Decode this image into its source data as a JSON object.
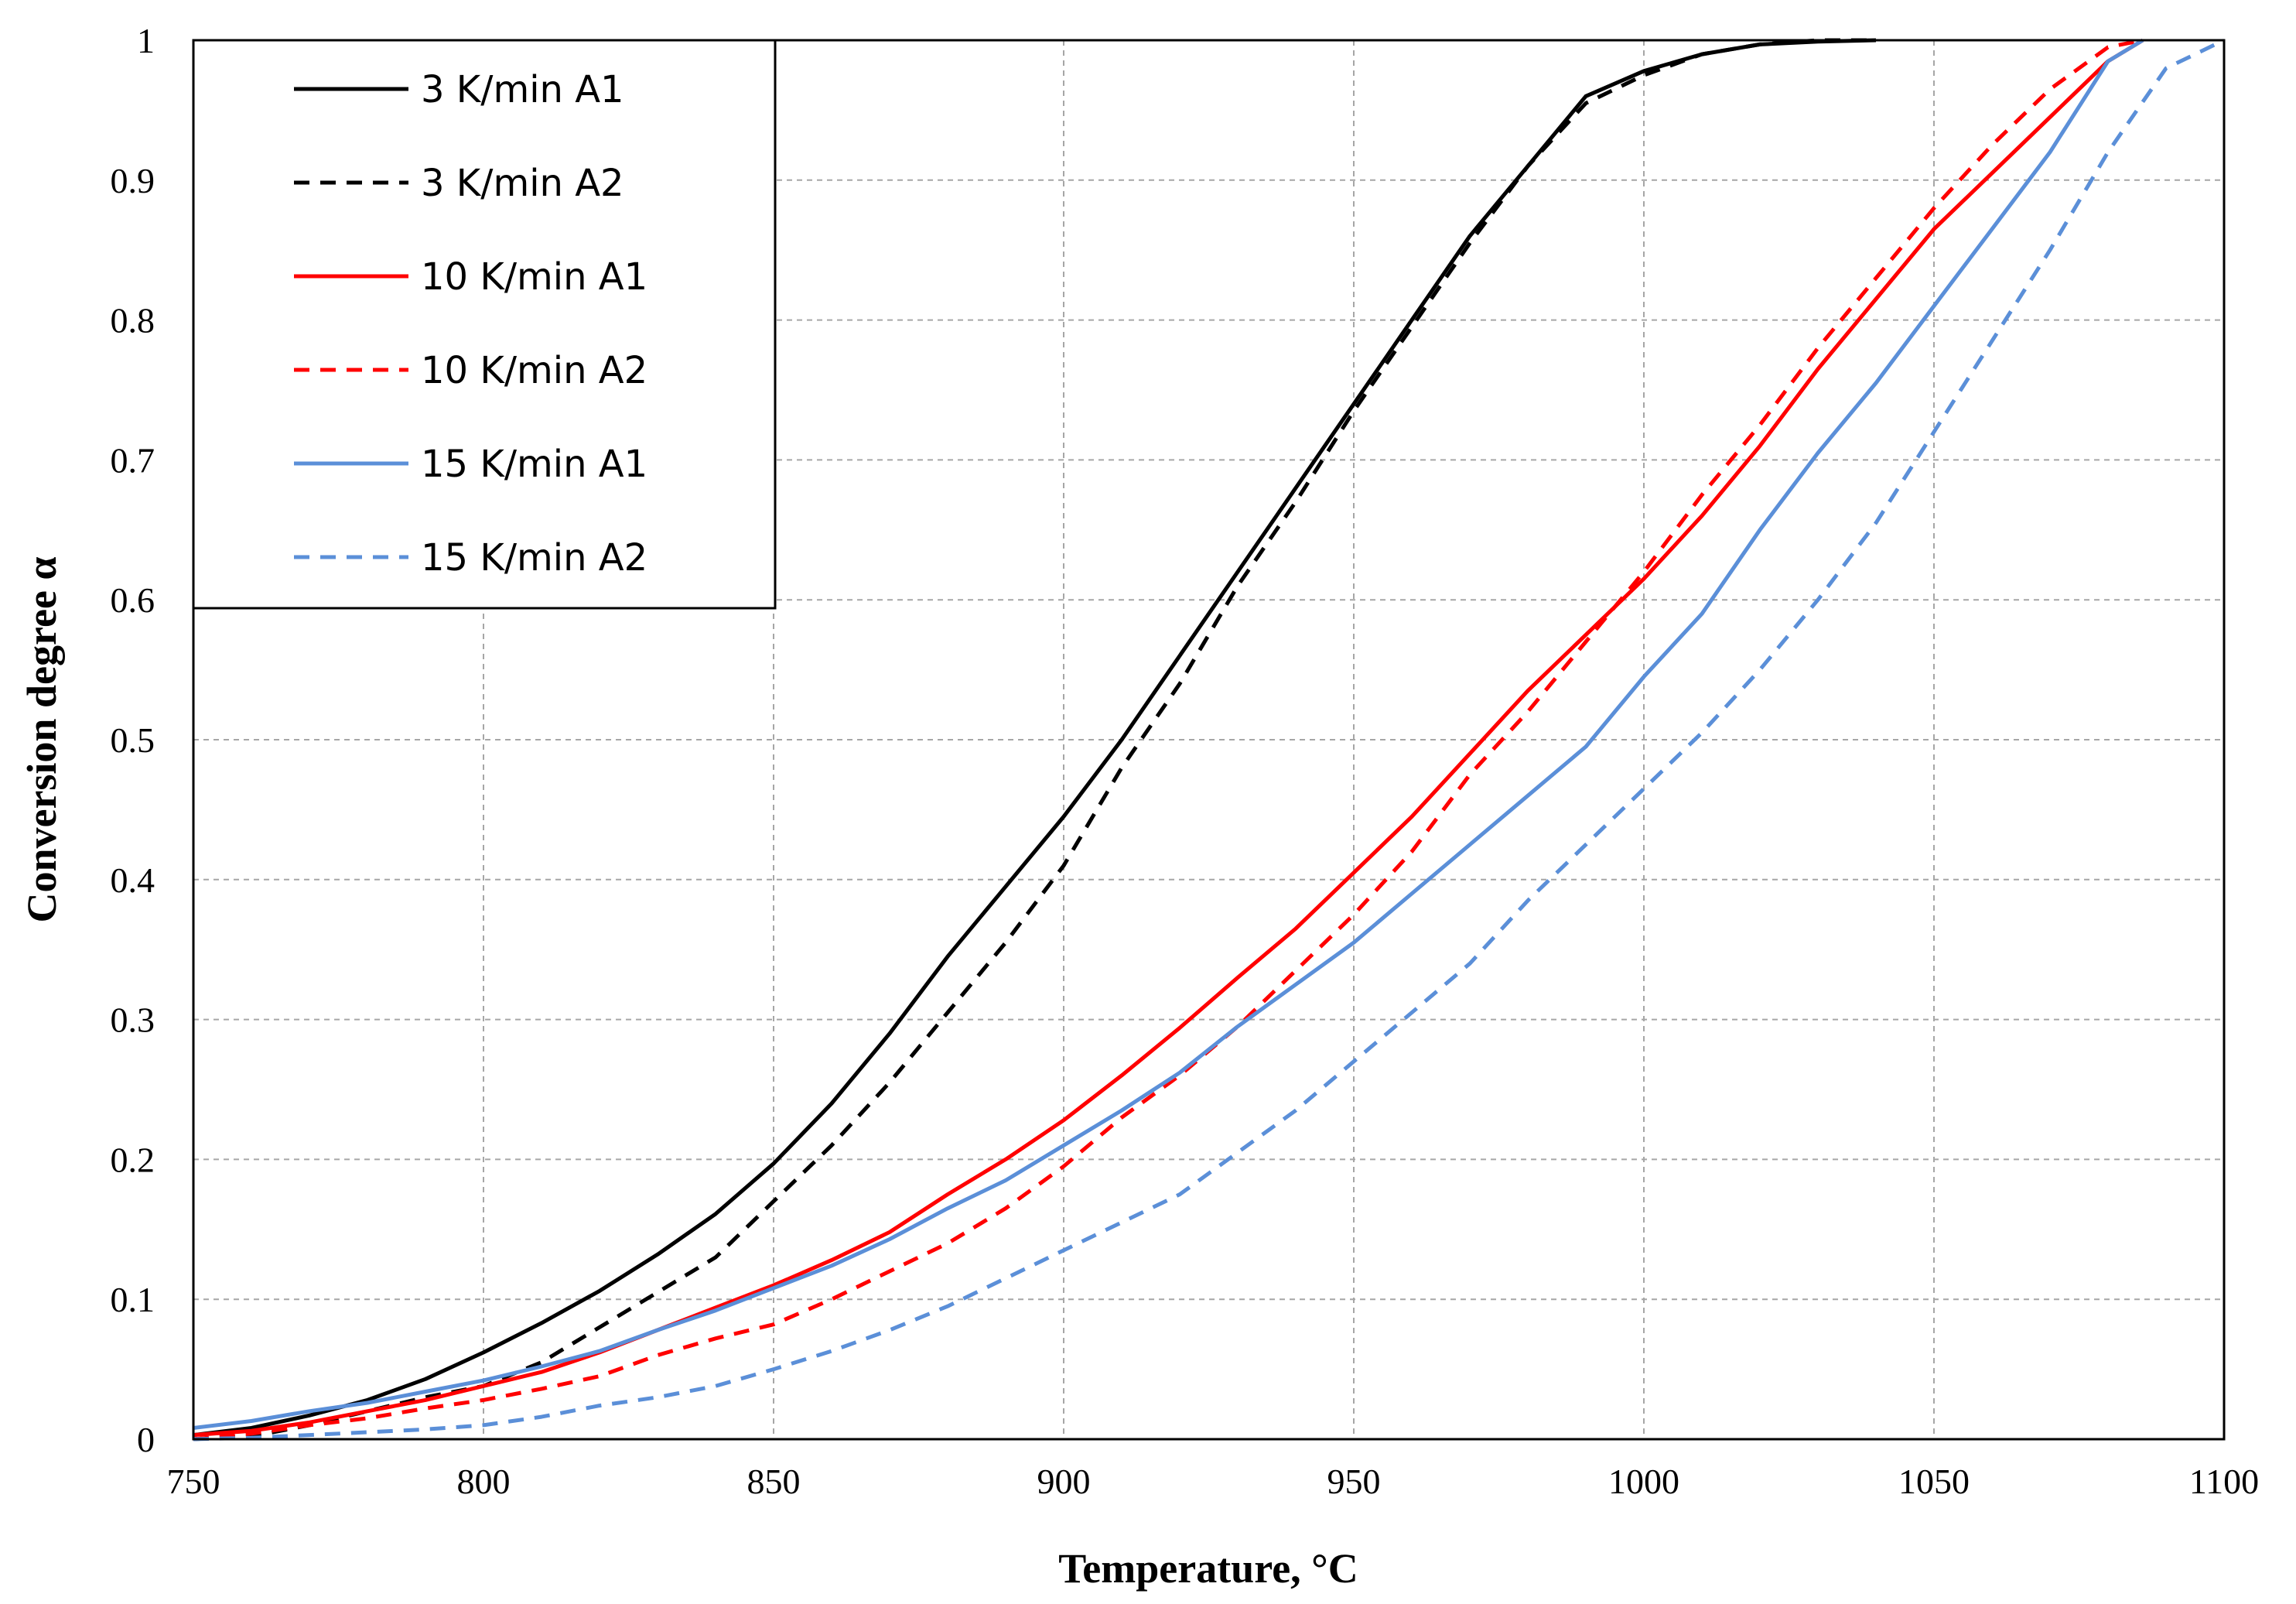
{
  "chart_data": {
    "type": "line",
    "title": "",
    "xlabel": "Temperature, °C",
    "ylabel": "Conversion degree α",
    "xlim": [
      750,
      1100
    ],
    "ylim": [
      0,
      1
    ],
    "xticks": [
      750,
      800,
      850,
      900,
      950,
      1000,
      1050,
      1100
    ],
    "yticks": [
      0,
      0.1,
      0.2,
      0.3,
      0.4,
      0.5,
      0.6,
      0.7,
      0.8,
      0.9,
      1
    ],
    "ytick_labels": [
      "0",
      "0.1",
      "0.2",
      "0.3",
      "0.4",
      "0.5",
      "0.6",
      "0.7",
      "0.8",
      "0.9",
      "1"
    ],
    "grid": true,
    "legend_position": "top-left",
    "series": [
      {
        "name": "3 K/min A1",
        "color": "#000000",
        "dash": "solid",
        "x": [
          750,
          760,
          770,
          780,
          790,
          800,
          810,
          820,
          830,
          840,
          850,
          860,
          870,
          880,
          890,
          900,
          910,
          920,
          930,
          940,
          950,
          960,
          970,
          980,
          990,
          1000,
          1010,
          1020,
          1030,
          1040
        ],
        "y": [
          0.003,
          0.008,
          0.017,
          0.028,
          0.043,
          0.062,
          0.083,
          0.106,
          0.132,
          0.161,
          0.197,
          0.24,
          0.29,
          0.345,
          0.395,
          0.445,
          0.5,
          0.56,
          0.62,
          0.68,
          0.74,
          0.8,
          0.86,
          0.91,
          0.96,
          0.978,
          0.99,
          0.997,
          0.999,
          1.0
        ]
      },
      {
        "name": "3 K/min A2",
        "color": "#000000",
        "dash": "dashed",
        "x": [
          750,
          760,
          770,
          780,
          790,
          800,
          810,
          820,
          830,
          840,
          850,
          860,
          870,
          880,
          890,
          900,
          910,
          920,
          930,
          940,
          950,
          960,
          970,
          980,
          990,
          1000,
          1010,
          1020,
          1030,
          1040
        ],
        "y": [
          0.0,
          0.002,
          0.01,
          0.02,
          0.03,
          0.038,
          0.055,
          0.08,
          0.105,
          0.13,
          0.17,
          0.21,
          0.255,
          0.305,
          0.355,
          0.41,
          0.48,
          0.54,
          0.61,
          0.67,
          0.735,
          0.795,
          0.855,
          0.91,
          0.955,
          0.975,
          0.99,
          0.997,
          1.0,
          1.0
        ]
      },
      {
        "name": "10 K/min A1",
        "color": "#ff0000",
        "dash": "solid",
        "x": [
          750,
          760,
          770,
          780,
          790,
          800,
          810,
          820,
          830,
          840,
          850,
          860,
          870,
          880,
          890,
          900,
          910,
          920,
          930,
          940,
          950,
          960,
          970,
          980,
          990,
          1000,
          1010,
          1020,
          1030,
          1040,
          1050,
          1060,
          1070,
          1080,
          1086
        ],
        "y": [
          0.003,
          0.006,
          0.012,
          0.02,
          0.028,
          0.038,
          0.048,
          0.062,
          0.078,
          0.094,
          0.11,
          0.128,
          0.148,
          0.175,
          0.2,
          0.228,
          0.26,
          0.294,
          0.33,
          0.365,
          0.405,
          0.445,
          0.49,
          0.535,
          0.575,
          0.615,
          0.66,
          0.71,
          0.765,
          0.815,
          0.865,
          0.905,
          0.945,
          0.985,
          1.0
        ]
      },
      {
        "name": "10 K/min A2",
        "color": "#ff0000",
        "dash": "dashed",
        "x": [
          750,
          760,
          770,
          780,
          790,
          800,
          810,
          820,
          830,
          840,
          850,
          860,
          870,
          880,
          890,
          900,
          910,
          920,
          930,
          940,
          950,
          960,
          970,
          980,
          990,
          1000,
          1010,
          1020,
          1030,
          1040,
          1050,
          1060,
          1070,
          1080,
          1086
        ],
        "y": [
          0.0,
          0.004,
          0.01,
          0.015,
          0.022,
          0.028,
          0.036,
          0.045,
          0.06,
          0.072,
          0.082,
          0.1,
          0.12,
          0.14,
          0.165,
          0.195,
          0.23,
          0.26,
          0.295,
          0.335,
          0.375,
          0.42,
          0.475,
          0.52,
          0.57,
          0.62,
          0.675,
          0.725,
          0.78,
          0.83,
          0.88,
          0.925,
          0.965,
          0.995,
          1.0
        ]
      },
      {
        "name": "15 K/min A1",
        "color": "#5b8fd8",
        "dash": "solid",
        "x": [
          750,
          760,
          770,
          780,
          790,
          800,
          810,
          820,
          830,
          840,
          850,
          860,
          870,
          880,
          890,
          900,
          910,
          920,
          930,
          940,
          950,
          960,
          970,
          980,
          990,
          1000,
          1010,
          1020,
          1030,
          1040,
          1050,
          1060,
          1070,
          1080,
          1086
        ],
        "y": [
          0.008,
          0.013,
          0.02,
          0.026,
          0.034,
          0.042,
          0.052,
          0.063,
          0.078,
          0.092,
          0.108,
          0.124,
          0.143,
          0.165,
          0.185,
          0.21,
          0.235,
          0.262,
          0.295,
          0.325,
          0.355,
          0.39,
          0.425,
          0.46,
          0.495,
          0.545,
          0.59,
          0.65,
          0.705,
          0.755,
          0.81,
          0.865,
          0.92,
          0.985,
          1.0
        ]
      },
      {
        "name": "15 K/min A2",
        "color": "#5b8fd8",
        "dash": "dashed",
        "x": [
          750,
          760,
          770,
          780,
          790,
          800,
          810,
          820,
          830,
          840,
          850,
          860,
          870,
          880,
          890,
          900,
          910,
          920,
          930,
          940,
          950,
          960,
          970,
          980,
          990,
          1000,
          1010,
          1020,
          1030,
          1040,
          1050,
          1060,
          1070,
          1080,
          1090,
          1100
        ],
        "y": [
          0.0,
          0.001,
          0.003,
          0.005,
          0.007,
          0.01,
          0.016,
          0.024,
          0.03,
          0.038,
          0.05,
          0.063,
          0.078,
          0.095,
          0.115,
          0.135,
          0.155,
          0.175,
          0.205,
          0.235,
          0.27,
          0.305,
          0.34,
          0.385,
          0.425,
          0.465,
          0.505,
          0.55,
          0.6,
          0.655,
          0.72,
          0.785,
          0.85,
          0.92,
          0.98,
          1.0
        ]
      }
    ]
  }
}
